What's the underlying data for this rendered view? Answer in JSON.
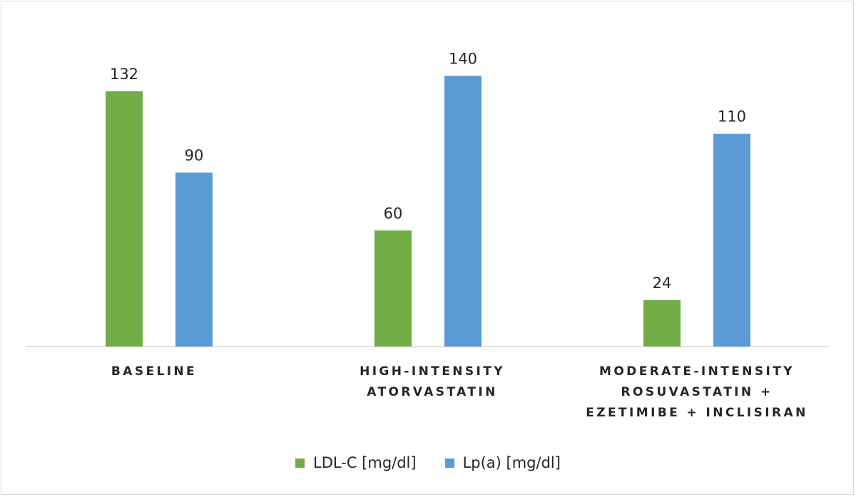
{
  "chart_data": {
    "type": "bar",
    "title": "",
    "xlabel": "",
    "ylabel": "",
    "ylim": [
      0,
      156
    ],
    "grid": false,
    "legend_position": "bottom",
    "categories": [
      "BASELINE",
      "HIGH-INTENSITY\nATORVASTATIN",
      "MODERATE-INTENSITY\nROSUVASTATIN +\nEZETIMIBE + INCLISIRAN"
    ],
    "series": [
      {
        "name": "LDL-C [mg/dl]",
        "color": "#70ad47",
        "values": [
          132,
          60,
          24
        ]
      },
      {
        "name": "Lp(a) [mg/dl]",
        "color": "#5b9bd5",
        "values": [
          90,
          140,
          110
        ]
      }
    ]
  }
}
